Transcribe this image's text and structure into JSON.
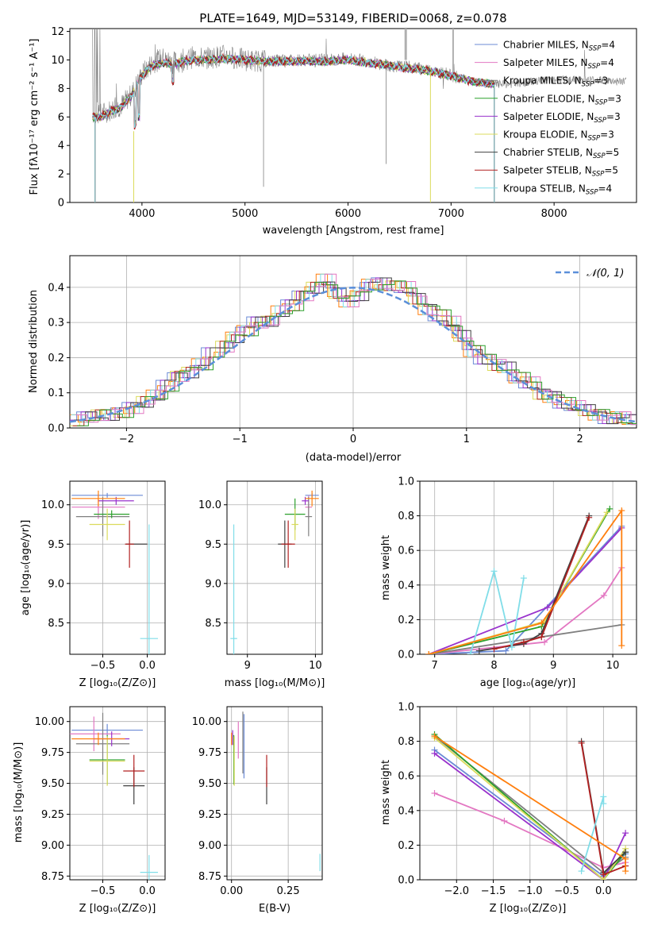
{
  "colors": {
    "chabrier_miles": "#6b8bd6",
    "salpeter_miles": "#e377c2",
    "kroupa_miles": "#7f7f7f",
    "chabrier_elodie": "#2ca02c",
    "salpeter_elodie": "#9932cc",
    "kroupa_elodie": "#dbdb5c",
    "chabrier_stelib": "#404040",
    "salpeter_stelib": "#b22222",
    "kroupa_stelib": "#80dde8",
    "orange": "#ff7f0e",
    "gaussian": "#5b8fd9"
  },
  "charts": [
    {
      "type": "line",
      "title": "PLATE=1649, MJD=53149, FIBERID=0068, z=0.078",
      "xlabel": "wavelength [Angstrom, rest frame]",
      "ylabel": "Flux [fλ10⁻¹⁷ erg cm⁻² s⁻¹ A⁻¹]",
      "xlim": [
        3300,
        8800
      ],
      "ylim": [
        0,
        12.2
      ],
      "xticks": [
        4000,
        5000,
        6000,
        7000,
        8000
      ],
      "yticks": [
        0,
        2,
        4,
        6,
        8,
        10,
        12
      ],
      "legend": [
        "Chabrier MILES, N_SSP=4",
        "Salpeter MILES, N_SSP=4",
        "Kroupa MILES, N_SSP=3",
        "Chabrier ELODIE, N_SSP=3",
        "Salpeter ELODIE, N_SSP=3",
        "Kroupa ELODIE, N_SSP=3",
        "Chabrier STELIB, N_SSP=5",
        "Salpeter STELIB, N_SSP=5",
        "Kroupa STELIB, N_SSP=4"
      ],
      "legend_placement": "upper right",
      "series": [
        {
          "name": "data",
          "x": [
            3520,
            3600,
            3700,
            3800,
            3900,
            4000,
            4100,
            4200,
            4300,
            4400,
            4500,
            4600,
            4800,
            5000,
            5200,
            5400,
            5600,
            5800,
            6000,
            6200,
            6400,
            6600,
            6800,
            7000,
            7200,
            7400,
            7600,
            7800,
            8000,
            8200,
            8400,
            8600
          ],
          "y": [
            6.3,
            6.2,
            6.5,
            6.8,
            7.6,
            9.0,
            9.8,
            10.1,
            9.8,
            10.0,
            10.2,
            10.1,
            10.3,
            10.0,
            9.9,
            10.0,
            10.0,
            10.0,
            10.1,
            9.9,
            9.6,
            9.5,
            9.3,
            8.9,
            8.5,
            8.3,
            8.3,
            8.5,
            8.6,
            8.6,
            8.6,
            8.5
          ]
        },
        {
          "name": "model",
          "x": [
            3520,
            3600,
            3700,
            3800,
            3900,
            4000,
            4100,
            4200,
            4300,
            4400,
            4500,
            4600,
            4800,
            5000,
            5200,
            5400,
            5600,
            5800,
            6000,
            6200,
            6400,
            6600,
            6800,
            7000,
            7200,
            7400,
            7600,
            7800,
            8000,
            8200,
            8400,
            8600
          ],
          "y": [
            6.0,
            6.0,
            6.4,
            6.7,
            7.5,
            8.9,
            9.6,
            9.8,
            9.7,
            9.9,
            10.0,
            10.0,
            10.1,
            10.0,
            9.9,
            9.9,
            9.9,
            9.9,
            10.0,
            9.8,
            9.6,
            9.4,
            9.2,
            8.9,
            8.5,
            8.3,
            8.3,
            8.4,
            8.5,
            8.5,
            8.5,
            8.4
          ]
        }
      ]
    },
    {
      "type": "line",
      "xlabel": "(data-model)/error",
      "ylabel": "Normed distribution",
      "xlim": [
        -2.5,
        2.5
      ],
      "ylim": [
        0,
        0.49
      ],
      "xticks": [
        -2,
        -1,
        0,
        1,
        2
      ],
      "yticks": [
        0.0,
        0.1,
        0.2,
        0.3,
        0.4
      ],
      "legend": [
        "𝒩(0, 1)"
      ],
      "legend_placement": "upper right",
      "bin_width": 0.1,
      "series": [
        {
          "name": "gaussian",
          "x": [
            -2.5,
            2.5
          ],
          "y": [
            0.018,
            0.018
          ]
        },
        {
          "name": "histogram",
          "x": [
            -2.45,
            -2.35,
            -2.25,
            -2.15,
            -2.05,
            -1.95,
            -1.85,
            -1.75,
            -1.65,
            -1.55,
            -1.45,
            -1.35,
            -1.25,
            -1.15,
            -1.05,
            -0.95,
            -0.85,
            -0.75,
            -0.65,
            -0.55,
            -0.45,
            -0.35,
            -0.25,
            -0.15,
            -0.05,
            0.05,
            0.15,
            0.25,
            0.35,
            0.45,
            0.55,
            0.65,
            0.75,
            0.85,
            0.95,
            1.05,
            1.15,
            1.25,
            1.35,
            1.45,
            1.55,
            1.65,
            1.75,
            1.85,
            1.95,
            2.05,
            2.15,
            2.25,
            2.35,
            2.45
          ],
          "y": [
            0.022,
            0.028,
            0.034,
            0.038,
            0.048,
            0.058,
            0.072,
            0.09,
            0.12,
            0.15,
            0.16,
            0.18,
            0.21,
            0.23,
            0.26,
            0.28,
            0.3,
            0.3,
            0.33,
            0.35,
            0.38,
            0.4,
            0.42,
            0.38,
            0.36,
            0.38,
            0.41,
            0.41,
            0.4,
            0.4,
            0.37,
            0.34,
            0.32,
            0.3,
            0.26,
            0.22,
            0.2,
            0.18,
            0.17,
            0.14,
            0.13,
            0.1,
            0.09,
            0.07,
            0.06,
            0.05,
            0.04,
            0.03,
            0.03,
            0.02
          ]
        }
      ]
    },
    {
      "type": "scatter",
      "xlabel": "Z [log₁₀(Z/Z⊙)]",
      "ylabel": "age  [log₁₀(age/yr)]",
      "xlim": [
        -0.87,
        0.2
      ],
      "ylim": [
        8.1,
        10.3
      ],
      "xticks": [
        -0.5,
        0.0
      ],
      "xticklabels": [
        "−0.5",
        "0.0"
      ],
      "yticks": [
        8.5,
        9.0,
        9.5,
        10.0
      ],
      "points": [
        {
          "series": "chabrier_miles",
          "x": -0.45,
          "y": 10.12,
          "xerr": 0.4,
          "yerr": 0.03
        },
        {
          "series": "salpeter_miles",
          "x": -0.55,
          "y": 9.97,
          "xerr": 0.3,
          "yerr": 0.15
        },
        {
          "series": "kroupa_miles",
          "x": -0.5,
          "y": 9.85,
          "xerr": 0.3,
          "yerr": 0.25
        },
        {
          "series": "chabrier_elodie",
          "x": -0.4,
          "y": 9.88,
          "xerr": 0.2,
          "yerr": 0.05
        },
        {
          "series": "salpeter_elodie",
          "x": -0.35,
          "y": 10.05,
          "xerr": 0.2,
          "yerr": 0.05
        },
        {
          "series": "kroupa_elodie",
          "x": -0.45,
          "y": 9.75,
          "xerr": 0.2,
          "yerr": 0.2
        },
        {
          "series": "chabrier_stelib",
          "x": -0.12,
          "y": 9.5,
          "xerr": 0.12,
          "yerr": 0.0
        },
        {
          "series": "salpeter_stelib",
          "x": -0.2,
          "y": 9.5,
          "xerr": 0.05,
          "yerr": 0.3
        },
        {
          "series": "kroupa_stelib",
          "x": 0.02,
          "y": 8.3,
          "xerr": 0.1,
          "yerr": 1.45
        },
        {
          "series": "orange",
          "x": -0.55,
          "y": 10.08,
          "xerr": 0.3,
          "yerr": 0.1
        }
      ]
    },
    {
      "type": "scatter",
      "xlabel": "mass [log₁₀(M/M⊙)]",
      "ylabel": "",
      "xlim": [
        8.7,
        10.1
      ],
      "ylim": [
        8.1,
        10.3
      ],
      "xticks": [
        9,
        10
      ],
      "yticks": [
        8.5,
        9.0,
        9.5,
        10.0
      ],
      "points": [
        {
          "series": "chabrier_miles",
          "x": 9.95,
          "y": 10.12,
          "xerr": 0.1,
          "yerr": 0.03
        },
        {
          "series": "salpeter_miles",
          "x": 9.9,
          "y": 9.97,
          "xerr": 0.05,
          "yerr": 0.15
        },
        {
          "series": "kroupa_miles",
          "x": 9.9,
          "y": 9.85,
          "xerr": 0.05,
          "yerr": 0.25
        },
        {
          "series": "chabrier_elodie",
          "x": 9.7,
          "y": 9.88,
          "xerr": 0.15,
          "yerr": 0.2
        },
        {
          "series": "salpeter_elodie",
          "x": 9.85,
          "y": 10.05,
          "xerr": 0.05,
          "yerr": 0.05
        },
        {
          "series": "kroupa_elodie",
          "x": 9.7,
          "y": 9.75,
          "xerr": 0.05,
          "yerr": 0.2
        },
        {
          "series": "chabrier_stelib",
          "x": 9.55,
          "y": 9.5,
          "xerr": 0.1,
          "yerr": 0.3
        },
        {
          "series": "salpeter_stelib",
          "x": 9.6,
          "y": 9.5,
          "xerr": 0.1,
          "yerr": 0.3
        },
        {
          "series": "kroupa_stelib",
          "x": 8.8,
          "y": 8.3,
          "xerr": 0.05,
          "yerr": 1.45
        },
        {
          "series": "orange",
          "x": 9.95,
          "y": 10.08,
          "xerr": 0.1,
          "yerr": 0.1
        }
      ]
    },
    {
      "type": "line",
      "xlabel": "age  [log₁₀(age/yr)]",
      "ylabel": "mass weight",
      "xlim": [
        6.75,
        10.4
      ],
      "ylim": [
        0,
        1.0
      ],
      "xticks": [
        7,
        8,
        9,
        10
      ],
      "yticks": [
        0.0,
        0.2,
        0.4,
        0.6,
        0.8,
        1.0
      ],
      "series": [
        {
          "name": "chabrier_miles",
          "x": [
            6.9,
            8.2,
            10.15
          ],
          "y": [
            0.0,
            0.02,
            0.74
          ]
        },
        {
          "name": "salpeter_miles",
          "x": [
            6.9,
            8.85,
            9.85,
            10.15
          ],
          "y": [
            0.0,
            0.07,
            0.34,
            0.5
          ]
        },
        {
          "name": "kroupa_miles",
          "x": [
            6.9,
            8.8,
            10.15
          ],
          "y": [
            0.0,
            0.1,
            0.17
          ]
        },
        {
          "name": "chabrier_elodie",
          "x": [
            6.9,
            8.8,
            9.95
          ],
          "y": [
            0.0,
            0.16,
            0.84
          ]
        },
        {
          "name": "salpeter_elodie",
          "x": [
            6.9,
            8.9,
            10.15
          ],
          "y": [
            0.0,
            0.27,
            0.73
          ]
        },
        {
          "name": "kroupa_elodie",
          "x": [
            6.9,
            8.85,
            9.9
          ],
          "y": [
            0.0,
            0.19,
            0.82
          ]
        },
        {
          "name": "chabrier_stelib",
          "x": [
            7.75,
            8.5,
            8.8,
            9.6
          ],
          "y": [
            0.02,
            0.06,
            0.12,
            0.8
          ]
        },
        {
          "name": "salpeter_stelib",
          "x": [
            8.0,
            8.5,
            8.8,
            9.6
          ],
          "y": [
            0.03,
            0.07,
            0.1,
            0.79
          ]
        },
        {
          "name": "kroupa_stelib",
          "x": [
            7.6,
            8.0,
            8.3,
            8.5
          ],
          "y": [
            0.0,
            0.48,
            0.04,
            0.44
          ]
        },
        {
          "name": "orange",
          "x": [
            6.9,
            8.8,
            10.15,
            10.15
          ],
          "y": [
            0.0,
            0.18,
            0.83,
            0.05
          ]
        }
      ]
    },
    {
      "type": "scatter",
      "xlabel": "Z [log₁₀(Z/Z⊙)]",
      "ylabel": "mass [log₁₀(M/M⊙)]",
      "xlim": [
        -0.87,
        0.2
      ],
      "ylim": [
        8.72,
        10.12
      ],
      "xticks": [
        -0.5,
        0.0
      ],
      "xticklabels": [
        "−0.5",
        "0.0"
      ],
      "yticks": [
        8.75,
        9.0,
        9.25,
        9.5,
        9.75,
        10.0
      ],
      "yticklabels": [
        "8.75",
        "9.00",
        "9.25",
        "9.50",
        "9.75",
        "10.00"
      ],
      "points": [
        {
          "series": "chabrier_miles",
          "x": -0.45,
          "y": 9.93,
          "xerr": 0.4,
          "yerr": 0.05
        },
        {
          "series": "salpeter_miles",
          "x": -0.6,
          "y": 9.9,
          "xerr": 0.3,
          "yerr": 0.14
        },
        {
          "series": "kroupa_miles",
          "x": -0.5,
          "y": 9.82,
          "xerr": 0.3,
          "yerr": 0.25
        },
        {
          "series": "chabrier_elodie",
          "x": -0.45,
          "y": 9.69,
          "xerr": 0.2,
          "yerr": 0.2
        },
        {
          "series": "salpeter_elodie",
          "x": -0.4,
          "y": 9.86,
          "xerr": 0.2,
          "yerr": 0.06
        },
        {
          "series": "kroupa_elodie",
          "x": -0.45,
          "y": 9.68,
          "xerr": 0.2,
          "yerr": 0.2
        },
        {
          "series": "chabrier_stelib",
          "x": -0.15,
          "y": 9.48,
          "xerr": 0.12,
          "yerr": 0.15
        },
        {
          "series": "salpeter_stelib",
          "x": -0.15,
          "y": 9.6,
          "xerr": 0.12,
          "yerr": 0.13
        },
        {
          "series": "kroupa_stelib",
          "x": 0.02,
          "y": 8.78,
          "xerr": 0.1,
          "yerr": 0.14
        },
        {
          "series": "orange",
          "x": -0.55,
          "y": 9.86,
          "xerr": 0.3,
          "yerr": 0.05
        }
      ]
    },
    {
      "type": "scatter",
      "xlabel": "E(B-V)",
      "ylabel": "",
      "xlim": [
        -0.02,
        0.4
      ],
      "ylim": [
        8.72,
        10.12
      ],
      "xticks": [
        0.0,
        0.25
      ],
      "xticklabels": [
        "0.00",
        "0.25"
      ],
      "yticks": [
        8.75,
        9.0,
        9.25,
        9.5,
        9.75,
        10.0
      ],
      "yticklabels": [
        "8.75",
        "9.00",
        "9.25",
        "9.50",
        "9.75",
        "10.00"
      ],
      "points": [
        {
          "series": "chabrier_miles",
          "x": 0.055,
          "y": 9.8,
          "xerr": 0.0,
          "yerr": 0.26
        },
        {
          "series": "salpeter_miles",
          "x": 0.03,
          "y": 9.85,
          "xerr": 0.0,
          "yerr": 0.15
        },
        {
          "series": "kroupa_miles",
          "x": 0.05,
          "y": 9.83,
          "xerr": 0.0,
          "yerr": 0.25
        },
        {
          "series": "chabrier_elodie",
          "x": 0.01,
          "y": 9.69,
          "xerr": 0.0,
          "yerr": 0.2
        },
        {
          "series": "salpeter_elodie",
          "x": 0.005,
          "y": 9.87,
          "xerr": 0.0,
          "yerr": 0.06
        },
        {
          "series": "kroupa_elodie",
          "x": 0.012,
          "y": 9.68,
          "xerr": 0.0,
          "yerr": 0.2
        },
        {
          "series": "chabrier_stelib",
          "x": 0.155,
          "y": 9.48,
          "xerr": 0.0,
          "yerr": 0.15
        },
        {
          "series": "salpeter_stelib",
          "x": 0.155,
          "y": 9.6,
          "xerr": 0.0,
          "yerr": 0.13
        },
        {
          "series": "kroupa_stelib",
          "x": 0.39,
          "y": 8.86,
          "xerr": 0.0,
          "yerr": 0.07
        },
        {
          "series": "orange",
          "x": 0.0,
          "y": 9.86,
          "xerr": 0.0,
          "yerr": 0.05
        }
      ]
    },
    {
      "type": "line",
      "xlabel": "Z [log₁₀(Z/Z⊙)]",
      "ylabel": "mass weight",
      "xlim": [
        -2.5,
        0.45
      ],
      "ylim": [
        0,
        1.0
      ],
      "xticks": [
        -2.0,
        -1.5,
        -1.0,
        -0.5,
        0.0
      ],
      "xticklabels": [
        "−2.0",
        "−1.5",
        "−1.0",
        "−0.5",
        "0.0"
      ],
      "yticks": [
        0.0,
        0.2,
        0.4,
        0.6,
        0.8,
        1.0
      ],
      "series": [
        {
          "name": "chabrier_miles",
          "x": [
            -2.3,
            0.0,
            0.3
          ],
          "y": [
            0.75,
            0.02,
            0.15
          ]
        },
        {
          "name": "salpeter_miles",
          "x": [
            -2.3,
            -1.35,
            0.0,
            0.3
          ],
          "y": [
            0.5,
            0.34,
            0.07,
            0.1
          ]
        },
        {
          "name": "kroupa_miles",
          "x": [
            -2.3,
            0.0,
            0.3
          ],
          "y": [
            0.83,
            0.04,
            0.13
          ]
        },
        {
          "name": "chabrier_elodie",
          "x": [
            -2.3,
            0.0,
            0.3
          ],
          "y": [
            0.84,
            0.0,
            0.16
          ]
        },
        {
          "name": "salpeter_elodie",
          "x": [
            -2.3,
            0.0,
            0.3
          ],
          "y": [
            0.73,
            0.0,
            0.27
          ]
        },
        {
          "name": "kroupa_elodie",
          "x": [
            -2.3,
            0.0,
            0.3
          ],
          "y": [
            0.82,
            0.0,
            0.18
          ]
        },
        {
          "name": "chabrier_stelib",
          "x": [
            -0.3,
            0.0,
            0.3
          ],
          "y": [
            0.8,
            0.04,
            0.16
          ]
        },
        {
          "name": "salpeter_stelib",
          "x": [
            -0.3,
            0.0,
            0.3
          ],
          "y": [
            0.79,
            0.03,
            0.08
          ]
        },
        {
          "name": "kroupa_stelib",
          "x": [
            -0.3,
            0.0,
            0.0
          ],
          "y": [
            0.05,
            0.48,
            0.44
          ]
        },
        {
          "name": "orange",
          "x": [
            -2.3,
            0.3,
            0.3
          ],
          "y": [
            0.83,
            0.12,
            0.05
          ]
        }
      ]
    }
  ]
}
